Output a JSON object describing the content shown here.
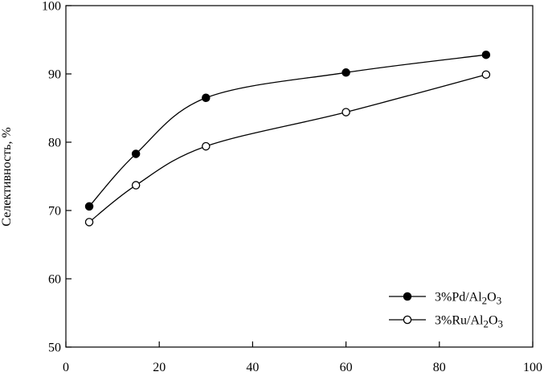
{
  "chart_data": {
    "type": "line",
    "title": "",
    "xlabel": "",
    "ylabel": "Селективность, %",
    "xlim": [
      0,
      100
    ],
    "ylim": [
      50,
      100
    ],
    "xticks": [
      0,
      20,
      40,
      60,
      80,
      100
    ],
    "yticks": [
      50,
      60,
      70,
      80,
      90,
      100
    ],
    "grid": false,
    "legend_position": "bottom-right",
    "series": [
      {
        "name": "3%Pd/Al2O3",
        "name_parts": [
          "3%Pd/Al",
          "2",
          "O",
          "3"
        ],
        "marker": "filled-circle",
        "color": "#000000",
        "x": [
          5,
          15,
          30,
          60,
          90
        ],
        "y": [
          70.6,
          78.3,
          86.5,
          90.2,
          92.8
        ]
      },
      {
        "name": "3%Ru/Al2O3",
        "name_parts": [
          "3%Ru/Al",
          "2",
          "O",
          "3"
        ],
        "marker": "open-circle",
        "color": "#000000",
        "x": [
          5,
          15,
          30,
          60,
          90
        ],
        "y": [
          68.3,
          73.7,
          79.4,
          84.4,
          89.9
        ]
      }
    ]
  }
}
